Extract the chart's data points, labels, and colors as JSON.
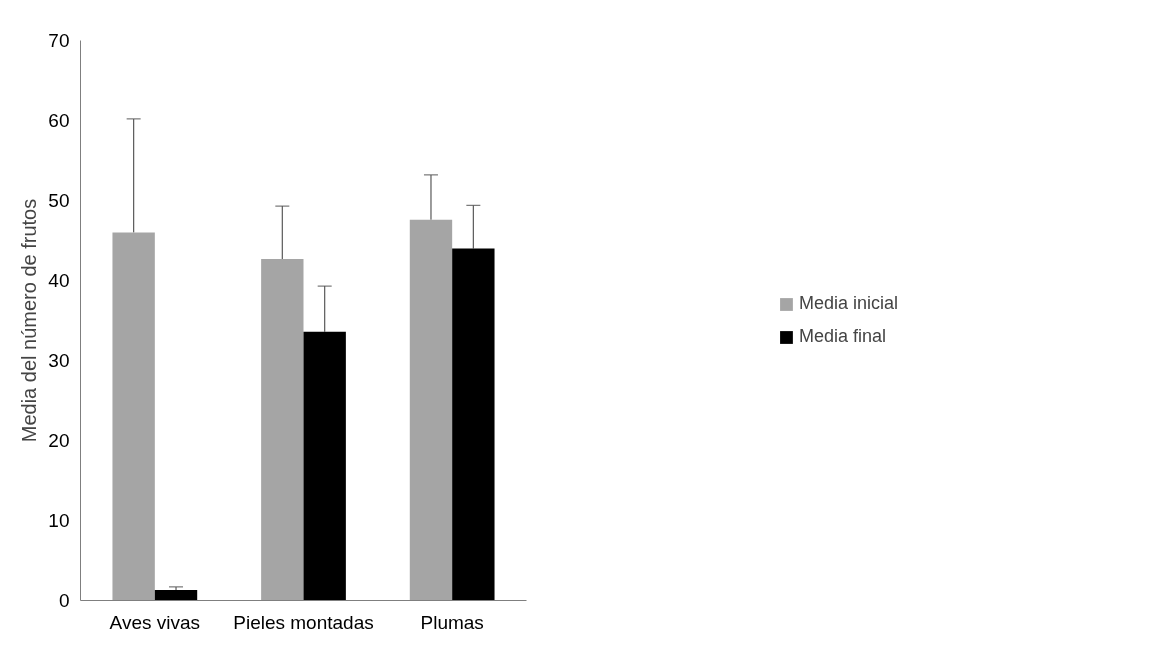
{
  "chart_data": {
    "type": "bar",
    "ylabel": "Media del número de frutos",
    "categories": [
      "Aves vivas",
      "Pieles montadas",
      "Plumas"
    ],
    "series": [
      {
        "name": "Media inicial",
        "color": "#a5a5a5",
        "values": [
          46.0,
          42.7,
          47.6
        ],
        "errors": [
          [
            46.0,
            60.2
          ],
          [
            42.7,
            49.3
          ],
          [
            47.6,
            53.2
          ]
        ]
      },
      {
        "name": "Media final",
        "color": "#000000",
        "values": [
          1.3,
          33.6,
          44.0
        ],
        "errors": [
          [
            1.3,
            1.7
          ],
          [
            33.6,
            39.3
          ],
          [
            44.0,
            49.4
          ]
        ]
      }
    ],
    "ylim": [
      0,
      70
    ],
    "yticks": [
      0,
      10,
      20,
      30,
      40,
      50,
      60,
      70
    ],
    "grid": false,
    "legend": "right"
  }
}
